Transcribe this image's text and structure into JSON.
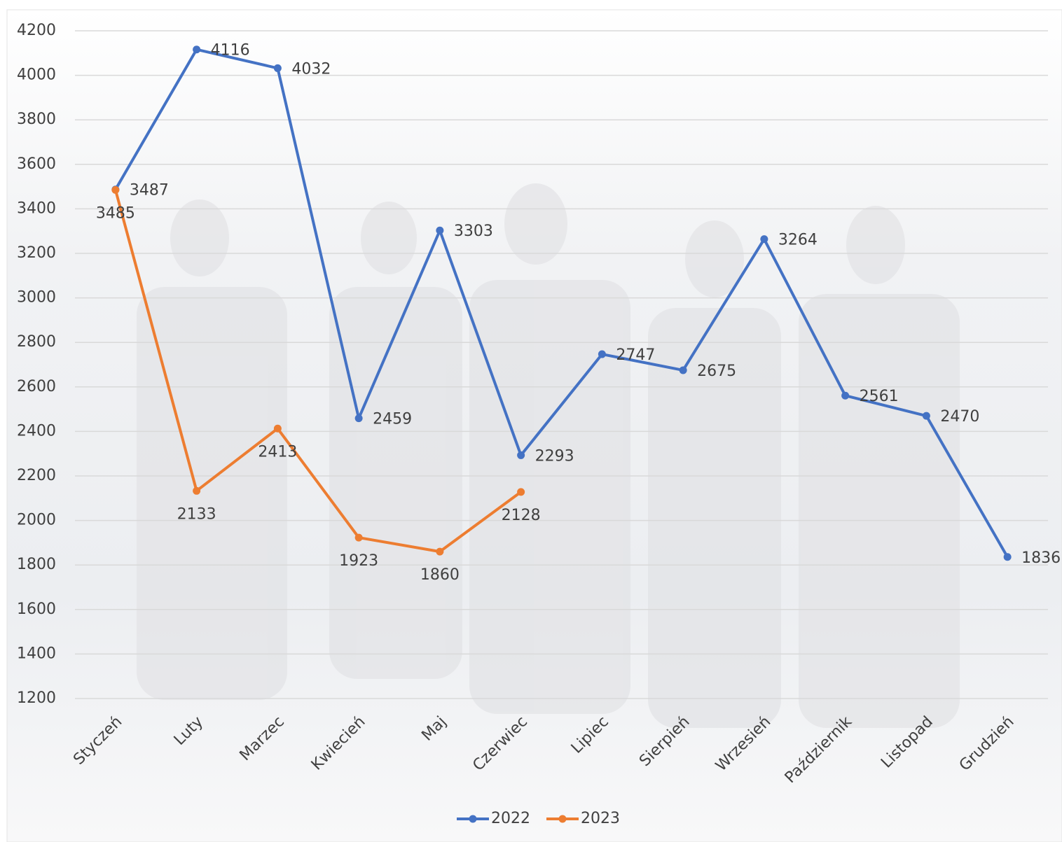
{
  "chart_data": {
    "type": "line",
    "categories": [
      "Styczeń",
      "Luty",
      "Marzec",
      "Kwiecień",
      "Maj",
      "Czerwiec",
      "Lipiec",
      "Sierpień",
      "Wrzesień",
      "Październik",
      "Listopad",
      "Grudzień"
    ],
    "series": [
      {
        "name": "2022",
        "color": "#4472c4",
        "values": [
          3487,
          4116,
          4032,
          2459,
          3303,
          2293,
          2747,
          2675,
          3264,
          2561,
          2470,
          1836
        ]
      },
      {
        "name": "2023",
        "color": "#ed7d31",
        "values": [
          3485,
          2133,
          2413,
          1923,
          1860,
          2128,
          null,
          null,
          null,
          null,
          null,
          null
        ]
      }
    ],
    "ylim": [
      1200,
      4200
    ],
    "yticks": [
      1200,
      1400,
      1600,
      1800,
      2000,
      2200,
      2400,
      2600,
      2800,
      3000,
      3200,
      3400,
      3600,
      3800,
      4000,
      4200
    ],
    "grid": true,
    "legend": "bottom"
  }
}
